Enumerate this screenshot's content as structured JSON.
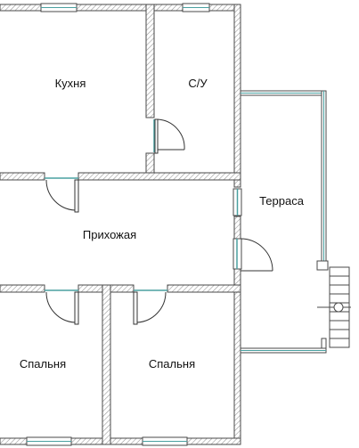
{
  "plan": {
    "rooms": {
      "kitchen": "Кухня",
      "bathroom": "С/У",
      "terrace": "Терраса",
      "hallway": "Прихожая",
      "bedroom_left": "Спальня",
      "bedroom_right": "Спальня"
    },
    "colors": {
      "wall_outline": "#4a4a4a",
      "wall_hatch": "#9a9a9a",
      "glazing": "#4aa0a0",
      "door_line": "#333333",
      "background": "#ffffff"
    }
  }
}
